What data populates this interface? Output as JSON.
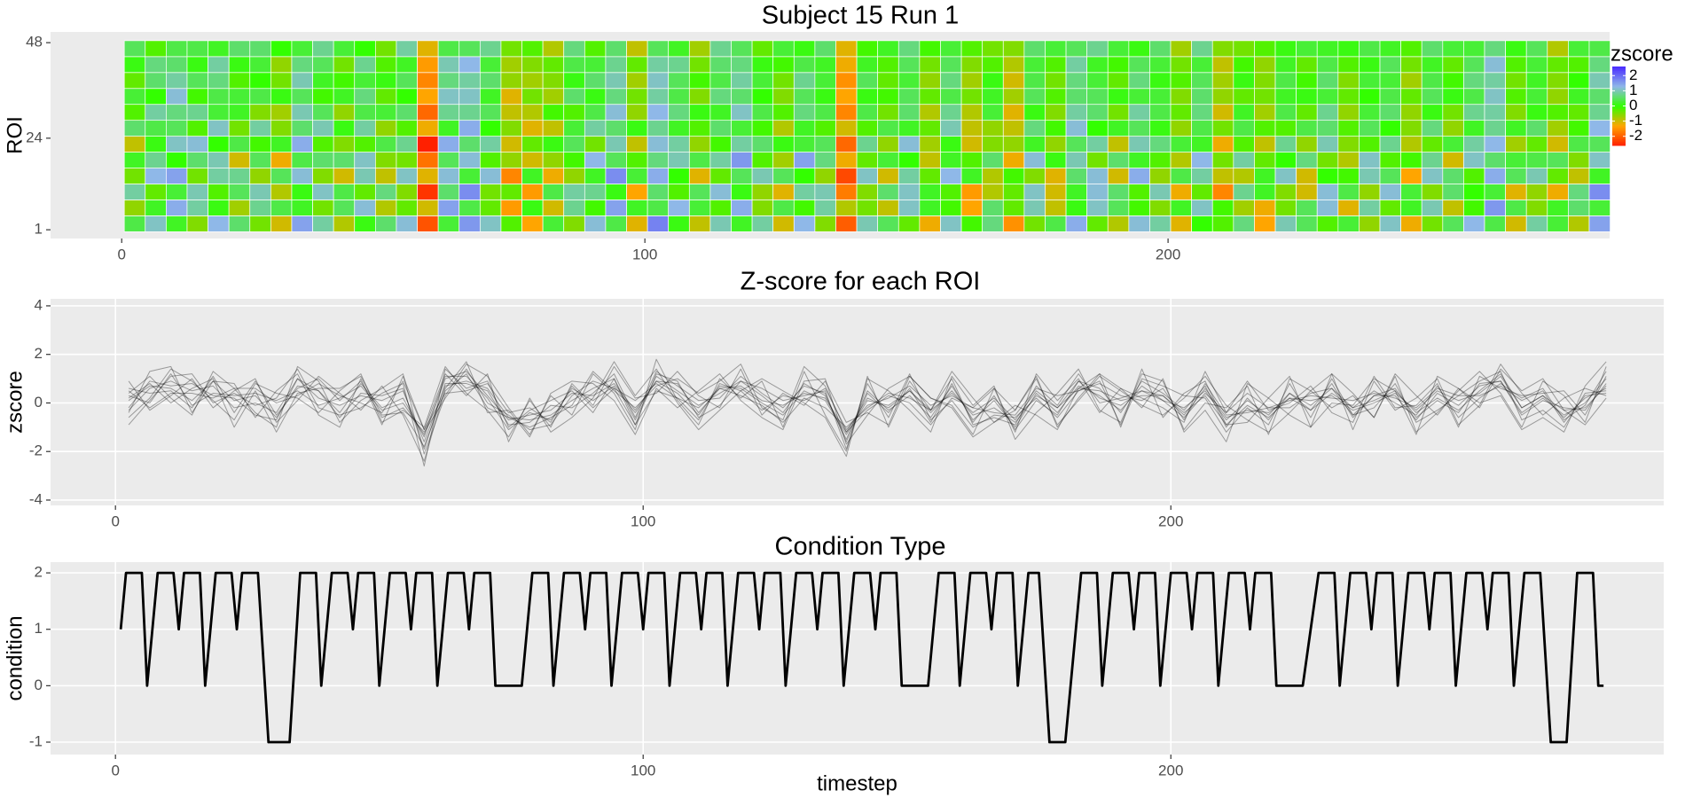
{
  "chart_data": [
    {
      "type": "heatmap",
      "title": "Subject 15 Run 1",
      "ylabel": "ROI",
      "x": [
        2.5,
        6.5,
        10.5,
        14.5,
        18.5,
        22.5,
        26.5,
        30.5,
        34.5,
        38.5,
        42.5,
        46.5,
        50.5,
        54.5,
        58.5,
        62.5,
        66.5,
        70.5,
        74.5,
        78.5,
        82.5,
        86.5,
        90.5,
        94.5,
        98.5,
        102.5,
        106.5,
        110.5,
        114.5,
        118.5,
        122.5,
        126.5,
        130.5,
        134.5,
        138.5,
        142.5,
        146.5,
        150.5,
        154.5,
        158.5,
        162.5,
        166.5,
        170.5,
        174.5,
        178.5,
        182.5,
        186.5,
        190.5,
        194.5,
        198.5,
        202.5,
        206.5,
        210.5,
        214.5,
        218.5,
        222.5,
        226.5,
        230.5,
        234.5,
        238.5,
        242.5,
        246.5,
        250.5,
        254.5,
        258.5,
        262.5,
        266.5,
        270.5,
        274.5,
        278.5,
        282.5
      ],
      "y": [
        2.5,
        6.5,
        10.5,
        14.5,
        18.5,
        22.5,
        26.5,
        30.5,
        34.5,
        38.5,
        42.5,
        46.5
      ],
      "z": [
        [
          0.4,
          1.1,
          0.2,
          -0.5,
          1.3,
          0.6,
          -0.4,
          -1.0,
          1.5,
          0.9,
          -0.8,
          0.1,
          0.6,
          1.2,
          -2.1,
          0.3,
          1.6,
          1.1,
          -0.2,
          -1.3,
          0.3,
          -0.5,
          1.2,
          0.4,
          -1.1,
          1.8,
          0.1,
          -0.9,
          1.0,
          0.2,
          0.9,
          -1.0,
          1.3,
          -0.5,
          -2.0,
          1.0,
          0.5,
          -0.3,
          -1.2,
          1.1,
          -0.1,
          0.7,
          -1.5,
          -0.4,
          0.4,
          1.4,
          -0.3,
          -0.8,
          1.2,
          0.9,
          -1.1,
          0.0,
          -0.2,
          0.7,
          -1.3,
          1.0,
          0.5,
          -0.2,
          0.3,
          -0.6,
          1.1,
          -1.2,
          -0.4,
          0.5,
          1.3,
          0.4,
          -1.0,
          0.9,
          0.3,
          -0.8,
          1.5
        ],
        [
          -0.6,
          0.2,
          1.4,
          0.9,
          0.1,
          -0.7,
          0.8,
          0.4,
          0.2,
          -0.4,
          0.5,
          1.2,
          -0.8,
          -0.3,
          -1.0,
          1.5,
          0.4,
          -0.3,
          -1.4,
          0.1,
          -1.0,
          0.8,
          -0.1,
          1.5,
          0.2,
          0.4,
          1.3,
          0.3,
          -0.2,
          1.4,
          -0.5,
          0.4,
          -0.1,
          0.9,
          -0.8,
          -0.4,
          -0.9,
          1.1,
          0.2,
          -0.1,
          -1.3,
          0.6,
          -0.3,
          1.0,
          -0.9,
          0.1,
          1.1,
          0.5,
          -0.1,
          -0.5,
          0.2,
          1.1,
          -0.1,
          -0.7,
          -1.2,
          -0.4,
          0.5,
          1.2,
          -1.1,
          0.9,
          -0.3,
          0.2,
          1.0,
          -0.9,
          -0.1,
          1.6,
          0.4,
          -0.5,
          0.2,
          0.6,
          0.3
        ],
        [
          0.9,
          -0.3,
          0.3,
          1.0,
          -0.2,
          0.5,
          1.0,
          -0.8,
          0.1,
          1.1,
          0.4,
          -0.3,
          0.7,
          -0.5,
          -2.4,
          0.6,
          1.7,
          -0.4,
          -0.3,
          -1.4,
          0.4,
          0.9,
          0.8,
          0.1,
          -1.3,
          0.6,
          -0.2,
          0.5,
          1.2,
          0.1,
          -0.6,
          -1.1,
          0.9,
          1.0,
          -1.7,
          -0.5,
          0.6,
          1.1,
          0.2,
          -0.2,
          -1.4,
          -0.8,
          -0.3,
          1.1,
          -1.0,
          0.2,
          1.2,
          0.6,
          -0.2,
          1.0,
          -1.2,
          -0.3,
          -1.6,
          0.8,
          0.2,
          -0.5,
          -1.0,
          1.2,
          0.4,
          -0.6,
          1.2,
          0.3,
          -0.5,
          0.6,
          0.0,
          0.3,
          -1.1,
          -0.6,
          -1.2,
          0.7,
          1.7
        ],
        [
          -0.4,
          1.3,
          1.5,
          -0.4,
          0.9,
          0.8,
          -0.6,
          0.5,
          1.2,
          -0.5,
          -1.0,
          1.0,
          -0.9,
          1.1,
          -1.1,
          1.2,
          0.3,
          1.2,
          -1.6,
          0.2,
          -1.2,
          -0.6,
          0.2,
          1.7,
          0.3,
          1.4,
          0.0,
          -1.1,
          -0.3,
          0.5,
          1.0,
          0.5,
          0.0,
          -0.6,
          -2.2,
          1.1,
          -1.0,
          0.9,
          -0.3,
          1.3,
          0.2,
          -0.8,
          -0.1,
          -0.5,
          -1.1,
          0.6,
          1.2,
          -1.0,
          1.4,
          -0.6,
          0.4,
          0.9,
          -0.9,
          -0.8,
          0.2,
          1.1,
          -1.0,
          0.0,
          -0.1,
          1.0,
          0.5,
          -1.3,
          1.1,
          0.6,
          -0.2,
          1.4,
          0.5,
          1.0,
          -0.3,
          -0.9,
          0.2
        ],
        [
          0.2,
          0.8,
          0.0,
          0.6,
          1.0,
          -1.0,
          0.5,
          -1.2,
          0.4,
          0.6,
          0.6,
          1.1,
          -0.5,
          -0.4,
          -1.8,
          0.5,
          1.2,
          -0.2,
          -0.6,
          -1.0,
          -0.6,
          -0.1,
          1.3,
          0.5,
          -0.2,
          0.7,
          1.0,
          0.4,
          0.9,
          1.6,
          -0.2,
          -0.7,
          1.5,
          0.7,
          -1.2,
          -0.3,
          0.3,
          0.0,
          -0.9,
          0.2,
          -0.2,
          0.6,
          -1.2,
          1.2,
          0.1,
          1.0,
          -0.4,
          0.6,
          0.2,
          -0.2,
          -0.8,
          1.3,
          -0.4,
          0.9,
          -0.3,
          0.0,
          0.7,
          -0.4,
          -0.8,
          1.1,
          -0.2,
          -0.1,
          0.8,
          -1.0,
          1.1,
          0.6,
          0.3,
          0.4,
          0.5,
          -0.5,
          1.1
        ],
        [
          -0.9,
          0.1,
          1.1,
          1.2,
          0.0,
          0.4,
          -0.1,
          0.2,
          1.4,
          -0.2,
          -0.5,
          -0.2,
          0.4,
          0.8,
          -2.6,
          1.4,
          0.6,
          0.9,
          -1.0,
          -0.3,
          0.1,
          0.5,
          -0.4,
          1.0,
          -0.9,
          1.2,
          0.9,
          -0.6,
          -0.1,
          0.9,
          0.6,
          0.1,
          0.3,
          0.5,
          -1.9,
          0.8,
          -0.6,
          1.2,
          -0.7,
          0.1,
          -1.0,
          -0.5,
          -0.6,
          0.2,
          -0.6,
          0.5,
          0.9,
          -0.9,
          1.0,
          0.7,
          0.3,
          0.2,
          -1.2,
          -0.2,
          -0.9,
          0.8,
          -0.6,
          1.0,
          -0.5,
          -0.2,
          0.8,
          -0.8,
          -0.3,
          0.3,
          0.9,
          1.3,
          -0.7,
          -0.3,
          -1.0,
          0.4,
          0.5
        ],
        [
          0.6,
          0.4,
          0.5,
          -0.2,
          1.1,
          -0.4,
          0.9,
          -0.5,
          0.6,
          1.0,
          0.1,
          0.9,
          -0.6,
          -0.2,
          -1.2,
          0.2,
          1.4,
          0.0,
          -0.5,
          -1.1,
          -0.9,
          0.3,
          0.9,
          0.6,
          0.1,
          0.8,
          0.2,
          -0.2,
          0.6,
          0.3,
          -0.1,
          -0.8,
          0.2,
          -0.2,
          -1.0,
          -0.2,
          0.4,
          0.2,
          -0.3,
          1.0,
          -0.9,
          -0.6,
          -0.9,
          0.7,
          -0.1,
          1.2,
          0.0,
          0.2,
          0.5,
          0.1,
          -0.6,
          0.4,
          -0.4,
          0.4,
          -0.2,
          -0.2,
          0.4,
          0.6,
          -0.2,
          0.5,
          0.0,
          -0.5,
          0.7,
          -0.6,
          0.2,
          0.8,
          0.2,
          0.6,
          -0.7,
          -0.1,
          1.3
        ],
        [
          -0.2,
          0.9,
          0.7,
          0.8,
          0.3,
          0.2,
          -0.5,
          -0.7,
          1.0,
          0.5,
          -0.6,
          0.4,
          0.3,
          0.6,
          -1.9,
          0.8,
          0.8,
          0.5,
          -0.9,
          -0.8,
          -0.1,
          -0.2,
          0.4,
          1.2,
          -0.6,
          1.3,
          0.7,
          0.1,
          0.2,
          1.1,
          0.4,
          -0.2,
          0.7,
          0.4,
          -1.6,
          0.4,
          -0.4,
          0.6,
          -0.8,
          0.8,
          -0.8,
          0.3,
          -1.1,
          0.1,
          -0.5,
          0.9,
          0.6,
          -0.4,
          0.9,
          0.4,
          -0.3,
          0.7,
          -1.0,
          0.2,
          -0.7,
          0.4,
          -0.3,
          0.8,
          -0.6,
          0.3,
          0.6,
          -0.6,
          0.1,
          -0.4,
          0.8,
          0.9,
          -0.5,
          0.1,
          -0.2,
          -0.3,
          0.8
        ],
        [
          0.3,
          0.0,
          1.2,
          -0.1,
          0.4,
          0.3,
          0.4,
          0.1,
          0.5,
          -0.1,
          0.2,
          0.7,
          -0.3,
          0.0,
          -1.3,
          1.1,
          1.1,
          0.2,
          -1.1,
          -0.4,
          -0.7,
          0.6,
          0.1,
          0.7,
          -0.4,
          0.9,
          0.4,
          -0.5,
          0.7,
          0.6,
          0.0,
          -0.5,
          0.5,
          0.1,
          -1.3,
          0.1,
          -0.1,
          0.5,
          -0.3,
          0.4,
          -0.4,
          0.2,
          -0.7,
          0.5,
          -0.2,
          0.6,
          0.5,
          0.1,
          0.3,
          0.3,
          -0.5,
          0.6,
          -0.6,
          -0.3,
          -0.4,
          0.2,
          0.1,
          0.3,
          -0.3,
          0.0,
          0.4,
          -0.3,
          0.5,
          0.1,
          0.4,
          1.1,
          -0.2,
          0.3,
          -0.6,
          0.2,
          0.6
        ],
        [
          -0.3,
          0.6,
          0.9,
          0.5,
          0.7,
          -0.2,
          0.0,
          -0.4,
          1.0,
          0.2,
          -0.1,
          0.3,
          0.1,
          0.5,
          -1.6,
          0.7,
          0.9,
          0.6,
          -0.6,
          -0.7,
          -0.5,
          0.1,
          0.6,
          1.0,
          -0.7,
          1.1,
          0.5,
          -0.1,
          0.4,
          0.9,
          0.3,
          -0.4,
          0.8,
          0.3,
          -1.5,
          0.5,
          -0.3,
          0.3,
          -0.6,
          0.7,
          -0.7,
          0.1,
          -1.0,
          0.4,
          -0.4,
          0.7,
          0.3,
          -0.3,
          0.7,
          0.1,
          -0.2,
          0.5,
          -0.7,
          0.1,
          -0.5,
          0.4,
          -0.1,
          0.6,
          -0.5,
          0.3,
          0.3,
          -0.7,
          0.4,
          -0.1,
          0.7,
          0.9,
          -0.4,
          0.2,
          -0.5,
          0.0,
          1.0
        ],
        [
          0.1,
          0.7,
          0.6,
          0.1,
          0.9,
          0.1,
          0.3,
          -0.6,
          0.7,
          0.5,
          -0.4,
          0.8,
          -0.2,
          0.2,
          -1.4,
          1.0,
          1.3,
          0.3,
          -0.7,
          -0.5,
          -0.3,
          0.4,
          0.3,
          0.8,
          -0.3,
          0.9,
          0.8,
          -0.4,
          0.6,
          0.7,
          0.1,
          -0.1,
          0.4,
          0.2,
          -1.2,
          0.2,
          -0.2,
          0.5,
          -0.4,
          0.5,
          -0.5,
          -0.2,
          -0.8,
          0.3,
          -0.2,
          0.9,
          0.2,
          -0.1,
          0.5,
          0.3,
          -0.4,
          0.3,
          -0.9,
          -0.1,
          -0.6,
          0.2,
          -0.3,
          0.4,
          -0.2,
          0.1,
          0.5,
          -0.4,
          0.2,
          -0.3,
          0.5,
          1.2,
          -0.2,
          0.3,
          -0.3,
          -0.2,
          0.7
        ],
        [
          0.5,
          -0.2,
          0.4,
          0.4,
          0.2,
          0.6,
          0.6,
          0.0,
          0.3,
          0.8,
          0.3,
          0.0,
          -0.4,
          0.9,
          -1.1,
          0.4,
          0.5,
          0.8,
          -0.4,
          -0.2,
          -0.8,
          0.7,
          -0.2,
          0.6,
          -0.9,
          0.5,
          0.2,
          -0.7,
          0.8,
          0.5,
          -0.3,
          0.3,
          0.1,
          0.6,
          -1.1,
          -0.1,
          0.2,
          0.7,
          -0.1,
          0.3,
          -0.2,
          -0.4,
          -0.5,
          0.6,
          0.3,
          0.5,
          0.8,
          0.3,
          0.1,
          0.6,
          -0.7,
          0.8,
          -0.5,
          -0.4,
          -0.2,
          0.1,
          0.3,
          0.2,
          0.1,
          0.4,
          0.2,
          -0.2,
          0.6,
          0.3,
          0.3,
          0.7,
          0.1,
          0.5,
          -0.8,
          0.3,
          0.4
        ]
      ],
      "xlim": [
        -13.6,
        284.4
      ],
      "ylim": [
        -1.2,
        50.7
      ],
      "xticks": [
        0,
        100,
        200
      ],
      "yticks": [
        1,
        24,
        48
      ],
      "grid": false,
      "colors": [
        "#ff2000",
        "#ffa500",
        "#33ff00",
        "#8fb8e8",
        "#4b2cff"
      ],
      "legend": {
        "title": "zscore",
        "ticks": [
          2,
          1,
          0,
          -1,
          -2
        ],
        "limits": [
          -2.6,
          2.6
        ]
      }
    },
    {
      "type": "line",
      "title": "Z-score for each ROI",
      "ylabel": "zscore",
      "color": "#000000",
      "xlim": [
        -12.3,
        293.4
      ],
      "ylim": [
        -4.22,
        4.29
      ],
      "xticks": [
        0,
        100,
        200
      ],
      "yticks": [
        -4,
        -2,
        0,
        2,
        4
      ],
      "grid": true
    },
    {
      "type": "line",
      "title": "Condition Type",
      "xlabel": "timestep",
      "ylabel": "condition",
      "color": "#000000",
      "x": [
        1,
        2,
        5,
        6,
        8,
        11,
        12,
        13,
        16,
        17,
        19,
        22,
        23,
        24,
        27,
        29,
        33,
        35,
        38,
        39,
        41,
        44,
        45,
        46,
        49,
        50,
        52,
        55,
        56,
        57,
        60,
        61,
        63,
        66,
        67,
        68,
        71,
        72,
        77,
        79,
        82,
        83,
        85,
        88,
        89,
        90,
        93,
        94,
        96,
        99,
        100,
        101,
        104,
        105,
        107,
        110,
        111,
        112,
        115,
        116,
        118,
        121,
        122,
        123,
        126,
        127,
        129,
        132,
        133,
        134,
        137,
        138,
        140,
        143,
        144,
        145,
        148,
        149,
        154,
        156,
        159,
        160,
        162,
        165,
        166,
        167,
        170,
        171,
        173,
        175,
        177,
        180,
        183,
        186,
        187,
        189,
        192,
        193,
        194,
        197,
        198,
        200,
        203,
        204,
        205,
        208,
        209,
        211,
        214,
        215,
        216,
        219,
        220,
        225,
        228,
        231,
        232,
        234,
        237,
        238,
        239,
        242,
        243,
        245,
        248,
        249,
        250,
        253,
        254,
        256,
        259,
        260,
        261,
        264,
        265,
        267,
        270,
        272,
        275,
        277,
        280,
        281,
        282
      ],
      "values": [
        1,
        2,
        2,
        0,
        2,
        2,
        1,
        2,
        2,
        0,
        2,
        2,
        1,
        2,
        2,
        -1,
        -1,
        2,
        2,
        0,
        2,
        2,
        1,
        2,
        2,
        0,
        2,
        2,
        1,
        2,
        2,
        0,
        2,
        2,
        1,
        2,
        2,
        0,
        0,
        2,
        2,
        0,
        2,
        2,
        1,
        2,
        2,
        0,
        2,
        2,
        1,
        2,
        2,
        0,
        2,
        2,
        1,
        2,
        2,
        0,
        2,
        2,
        1,
        2,
        2,
        0,
        2,
        2,
        1,
        2,
        2,
        0,
        2,
        2,
        1,
        2,
        2,
        0,
        0,
        2,
        2,
        0,
        2,
        2,
        1,
        2,
        2,
        0,
        2,
        2,
        -1,
        -1,
        2,
        2,
        0,
        2,
        2,
        1,
        2,
        2,
        0,
        2,
        2,
        1,
        2,
        2,
        0,
        2,
        2,
        1,
        2,
        2,
        0,
        0,
        2,
        2,
        0,
        2,
        2,
        1,
        2,
        2,
        0,
        2,
        2,
        1,
        2,
        2,
        0,
        2,
        2,
        1,
        2,
        2,
        0,
        2,
        2,
        -1,
        -1,
        2,
        2,
        0,
        0
      ],
      "xlim": [
        -12.3,
        293.4
      ],
      "ylim": [
        -1.22,
        2.19
      ],
      "xticks": [
        0,
        100,
        200
      ],
      "yticks": [
        -1,
        0,
        1,
        2
      ],
      "grid": true
    }
  ]
}
